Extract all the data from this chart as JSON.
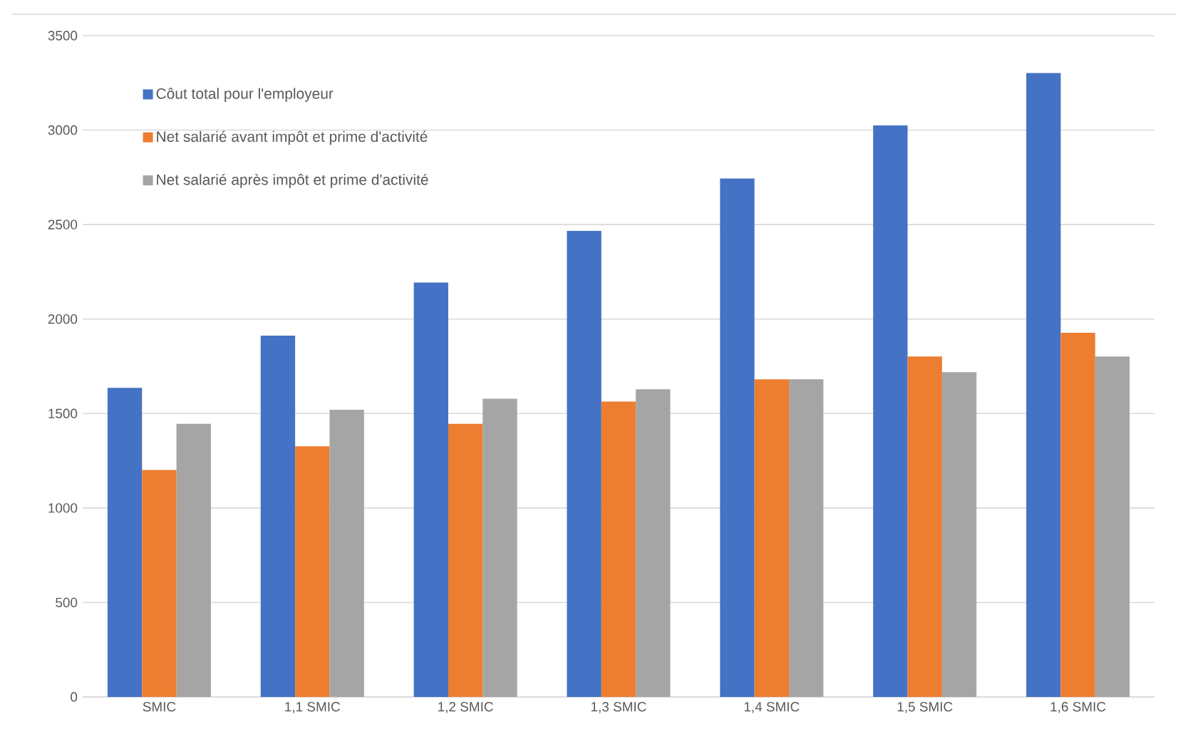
{
  "chart_data": {
    "type": "bar",
    "categories": [
      "SMIC",
      "1,1 SMIC",
      "1,2 SMIC",
      "1,3 SMIC",
      "1,4 SMIC",
      "1,5 SMIC",
      "1,6 SMIC"
    ],
    "series": [
      {
        "name": "Côut total pour l'employeur",
        "color": "#4472c4",
        "values": [
          1636,
          1912,
          2193,
          2467,
          2744,
          3025,
          3302
        ]
      },
      {
        "name": "Net salarié avant impôt et prime d'activité",
        "color": "#ed7d31",
        "values": [
          1201,
          1327,
          1445,
          1563,
          1681,
          1802,
          1927
        ]
      },
      {
        "name": "Net salarié après impôt et prime d'activité",
        "color": "#a5a5a5",
        "values": [
          1445,
          1520,
          1578,
          1628,
          1681,
          1719,
          1802
        ]
      }
    ],
    "ylim": [
      0,
      3500
    ],
    "yticks": [
      0,
      500,
      1000,
      1500,
      2000,
      2500,
      3000,
      3500
    ],
    "grid": "y",
    "legend": "top left"
  }
}
